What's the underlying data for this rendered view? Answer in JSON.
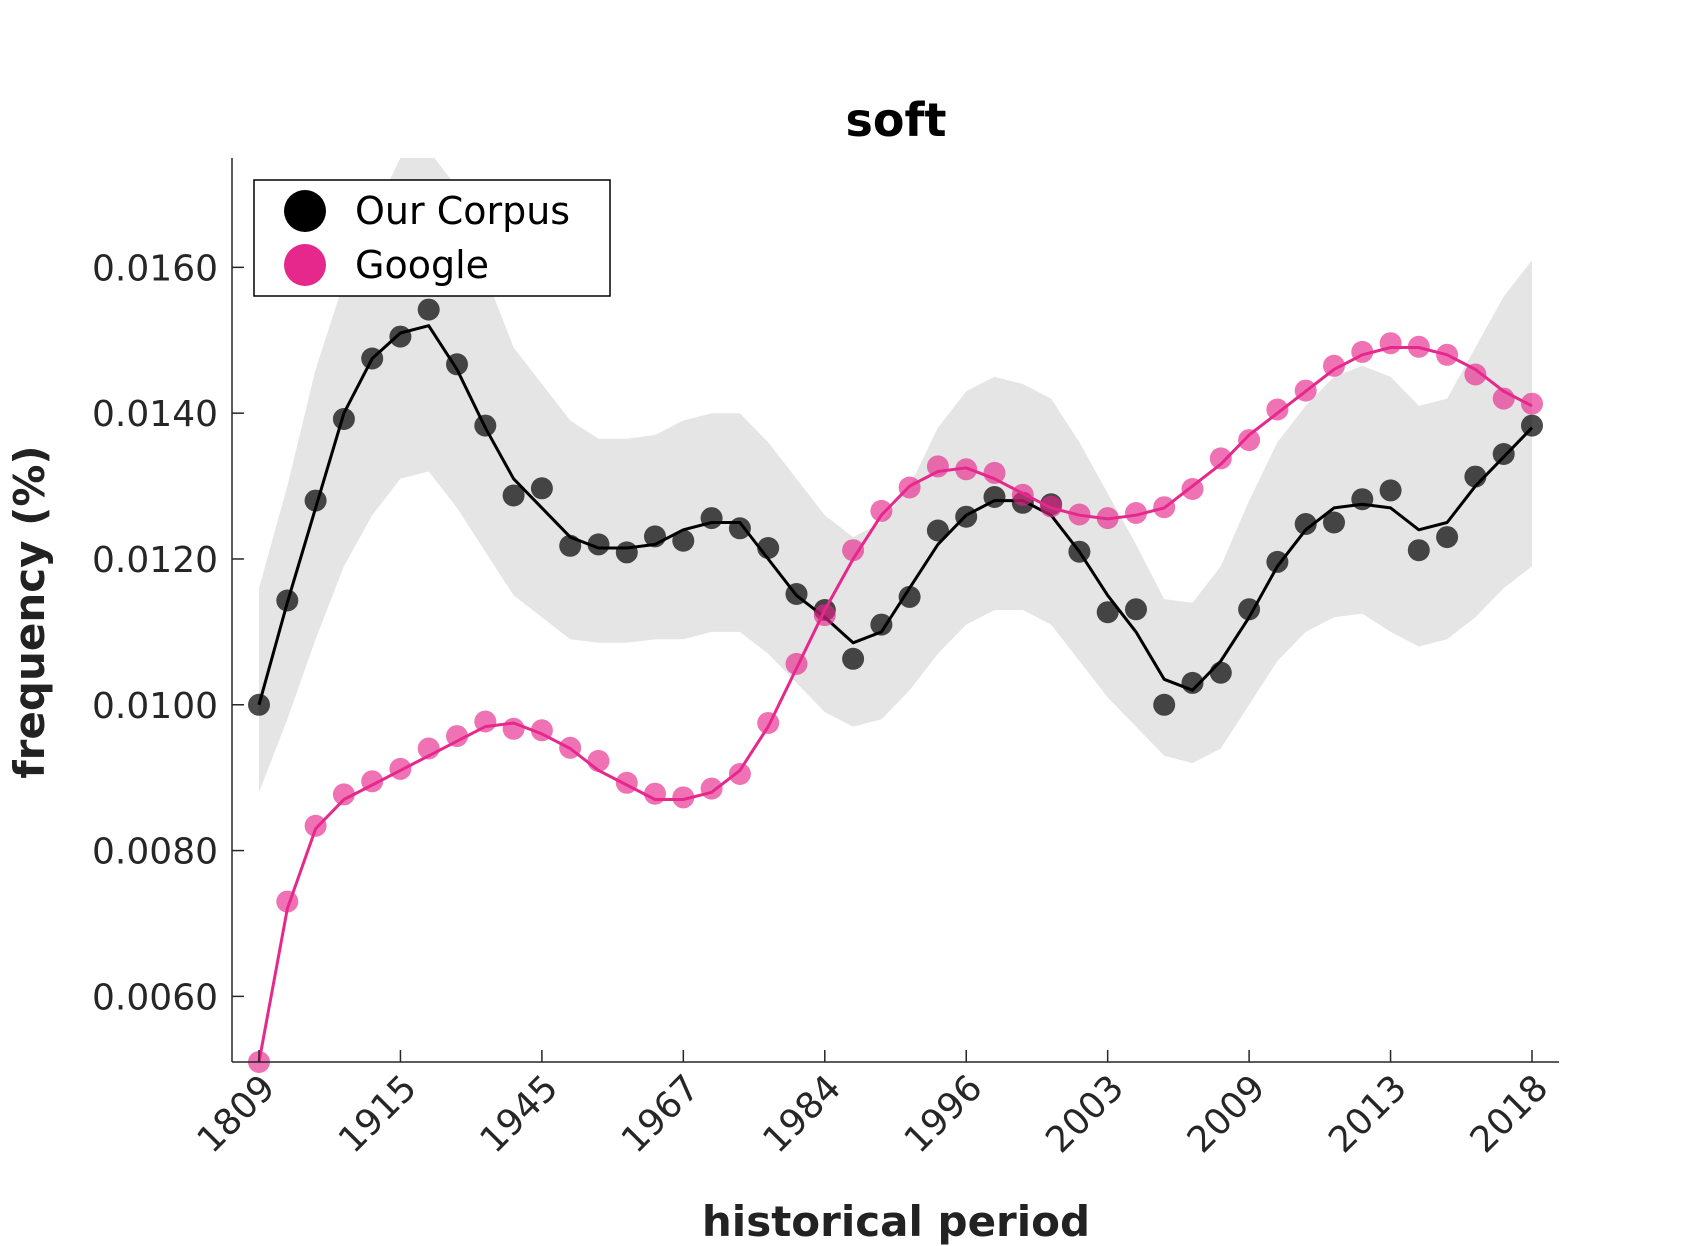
{
  "chart_data": {
    "type": "line",
    "title": "soft",
    "xlabel": "historical period",
    "ylabel": "frequency (%)",
    "ylim": [
      0.0051,
      0.0175
    ],
    "x_tick_labels": [
      "1809",
      "1915",
      "1945",
      "1967",
      "1984",
      "1996",
      "2003",
      "2009",
      "2013",
      "2018"
    ],
    "y_tick_labels": [
      "0.0060",
      "0.0080",
      "0.0100",
      "0.0120",
      "0.0140",
      "0.0160"
    ],
    "y_ticks": [
      0.006,
      0.008,
      0.01,
      0.012,
      0.014,
      0.016
    ],
    "legend_position": "top-left",
    "grid": false,
    "colors": {
      "corpus": "#000000",
      "google": "#e6288c",
      "band": "#e5e5e5"
    },
    "series": [
      {
        "name": "Our Corpus",
        "markers": [
          0.01,
          0.01143,
          0.0128,
          0.01392,
          0.01475,
          0.01505,
          0.01542,
          0.01467,
          0.01383,
          0.01287,
          0.01297,
          0.01218,
          0.0122,
          0.01209,
          0.01231,
          0.01225,
          0.01256,
          0.01242,
          0.01215,
          0.01152,
          0.0113,
          0.01063,
          0.0111,
          0.01148,
          0.01239,
          0.01258,
          0.01285,
          0.01277,
          0.01275,
          0.0121,
          0.01127,
          0.01131,
          0.01,
          0.0103,
          0.01044,
          0.01131,
          0.01196,
          0.01248,
          0.0125,
          0.01282,
          0.01294,
          0.01212,
          0.0123,
          0.01313,
          0.01344,
          0.01383
        ],
        "line": [
          0.01,
          0.0114,
          0.0127,
          0.014,
          0.01475,
          0.0151,
          0.0152,
          0.0146,
          0.0138,
          0.0131,
          0.0127,
          0.0123,
          0.01215,
          0.01215,
          0.0122,
          0.0124,
          0.0125,
          0.0125,
          0.012,
          0.0115,
          0.0112,
          0.01085,
          0.011,
          0.0116,
          0.0122,
          0.0126,
          0.0128,
          0.0128,
          0.0126,
          0.0121,
          0.0115,
          0.011,
          0.01035,
          0.0102,
          0.0106,
          0.0112,
          0.0119,
          0.0124,
          0.0127,
          0.01275,
          0.0127,
          0.0124,
          0.0125,
          0.013,
          0.0134,
          0.0138
        ],
        "band_upper": [
          0.0116,
          0.013,
          0.0146,
          0.0158,
          0.0167,
          0.0175,
          0.0176,
          0.0171,
          0.0159,
          0.0149,
          0.0144,
          0.0139,
          0.01365,
          0.01365,
          0.0137,
          0.0139,
          0.014,
          0.014,
          0.0136,
          0.0131,
          0.0126,
          0.0123,
          0.0125,
          0.013,
          0.0138,
          0.0143,
          0.0145,
          0.0144,
          0.0142,
          0.0136,
          0.0129,
          0.0122,
          0.01145,
          0.0114,
          0.0119,
          0.0128,
          0.0136,
          0.0141,
          0.0145,
          0.01465,
          0.0145,
          0.0141,
          0.0142,
          0.0149,
          0.0156,
          0.0161
        ],
        "band_lower": [
          0.0088,
          0.0098,
          0.0109,
          0.0119,
          0.0126,
          0.0131,
          0.0132,
          0.0127,
          0.0121,
          0.0115,
          0.0112,
          0.0109,
          0.01085,
          0.01085,
          0.0109,
          0.0109,
          0.011,
          0.011,
          0.0107,
          0.0103,
          0.0099,
          0.0097,
          0.0098,
          0.0102,
          0.0107,
          0.0111,
          0.0113,
          0.0113,
          0.0111,
          0.0106,
          0.0101,
          0.0097,
          0.0093,
          0.0092,
          0.0094,
          0.01,
          0.0106,
          0.011,
          0.0112,
          0.01125,
          0.011,
          0.0108,
          0.0109,
          0.0112,
          0.0116,
          0.0119
        ]
      },
      {
        "name": "Google",
        "markers": [
          0.0051,
          0.0073,
          0.00834,
          0.00877,
          0.00895,
          0.00912,
          0.0094,
          0.00957,
          0.00977,
          0.00967,
          0.00965,
          0.00941,
          0.00923,
          0.00893,
          0.00878,
          0.00873,
          0.00885,
          0.00905,
          0.00975,
          0.01056,
          0.01123,
          0.01212,
          0.01266,
          0.01298,
          0.01327,
          0.01323,
          0.01318,
          0.01288,
          0.01272,
          0.01261,
          0.01256,
          0.01263,
          0.01271,
          0.01296,
          0.01338,
          0.01363,
          0.01405,
          0.01431,
          0.01465,
          0.01484,
          0.01496,
          0.01491,
          0.0148,
          0.01453,
          0.0142,
          0.01413
        ],
        "line": [
          0.0051,
          0.0072,
          0.0083,
          0.0087,
          0.0089,
          0.0091,
          0.0093,
          0.0095,
          0.0097,
          0.00975,
          0.0096,
          0.0094,
          0.0091,
          0.0089,
          0.0087,
          0.0087,
          0.0088,
          0.0091,
          0.0097,
          0.0105,
          0.0113,
          0.012,
          0.0126,
          0.013,
          0.0132,
          0.01325,
          0.0131,
          0.0129,
          0.0127,
          0.0126,
          0.01255,
          0.0126,
          0.0127,
          0.013,
          0.0133,
          0.0137,
          0.014,
          0.0143,
          0.0146,
          0.0148,
          0.0149,
          0.0149,
          0.0148,
          0.0146,
          0.0143,
          0.0141
        ]
      }
    ]
  }
}
